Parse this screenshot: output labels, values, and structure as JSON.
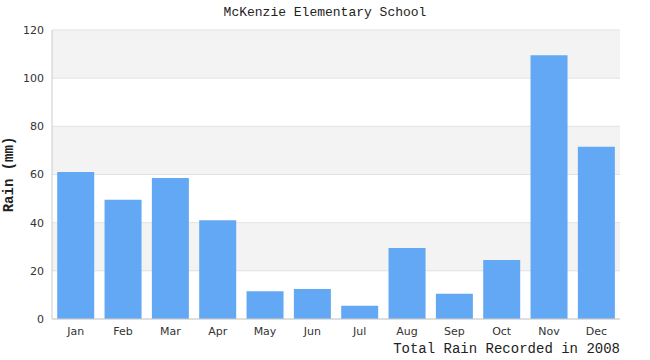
{
  "chart_data": {
    "type": "bar",
    "title": "McKenzie Elementary School",
    "xlabel": "Total Rain Recorded in 2008",
    "ylabel": "Rain (mm)",
    "categories": [
      "Jan",
      "Feb",
      "Mar",
      "Apr",
      "May",
      "Jun",
      "Jul",
      "Aug",
      "Sep",
      "Oct",
      "Nov",
      "Dec"
    ],
    "values": [
      61,
      49.5,
      58.5,
      41,
      11.5,
      12.5,
      5.5,
      29.5,
      10.5,
      24.5,
      109.5,
      71.5
    ],
    "color": "#62a8f5",
    "ylim": [
      0,
      120
    ],
    "yticks": [
      0,
      20,
      40,
      60,
      80,
      100,
      120
    ],
    "grid": true
  }
}
